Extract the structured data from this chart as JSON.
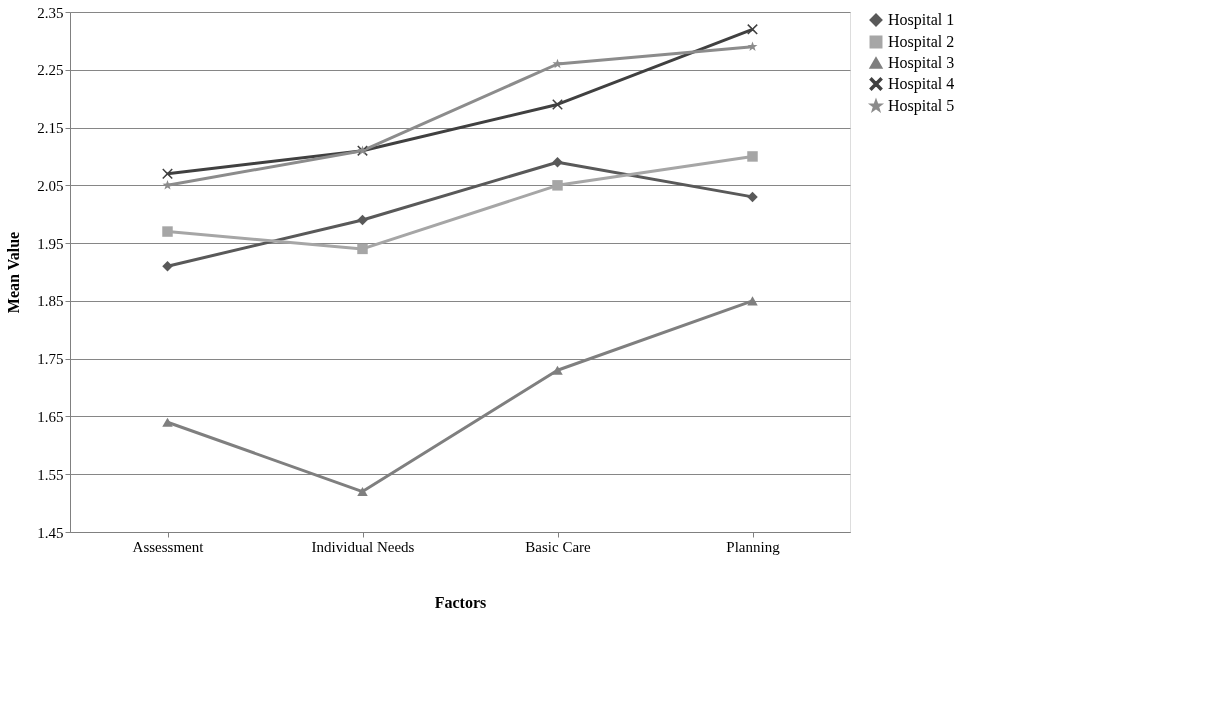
{
  "chart_data": {
    "type": "line",
    "xlabel": "Factors",
    "ylabel": "Mean Value",
    "categories": [
      "Assessment",
      "Individual Needs",
      "Basic Care",
      "Planning"
    ],
    "ylim": [
      1.45,
      2.35
    ],
    "yticks": [
      1.45,
      1.55,
      1.65,
      1.75,
      1.85,
      1.95,
      2.05,
      2.15,
      2.25,
      2.35
    ],
    "grid": "y",
    "legend": "right",
    "series": [
      {
        "name": "Hospital 1",
        "color": "#595959",
        "marker": "diamond",
        "values": [
          1.91,
          1.99,
          2.09,
          2.03
        ]
      },
      {
        "name": "Hospital 2",
        "color": "#a6a6a6",
        "marker": "square",
        "values": [
          1.97,
          1.94,
          2.05,
          2.1
        ]
      },
      {
        "name": "Hospital 3",
        "color": "#7f7f7f",
        "marker": "triangle",
        "values": [
          1.64,
          1.52,
          1.73,
          1.85
        ]
      },
      {
        "name": "Hospital 4",
        "color": "#404040",
        "marker": "cross",
        "values": [
          2.07,
          2.11,
          2.19,
          2.32
        ]
      },
      {
        "name": "Hospital 5",
        "color": "#8c8c8c",
        "marker": "star",
        "values": [
          2.05,
          2.11,
          2.26,
          2.29
        ]
      }
    ]
  }
}
